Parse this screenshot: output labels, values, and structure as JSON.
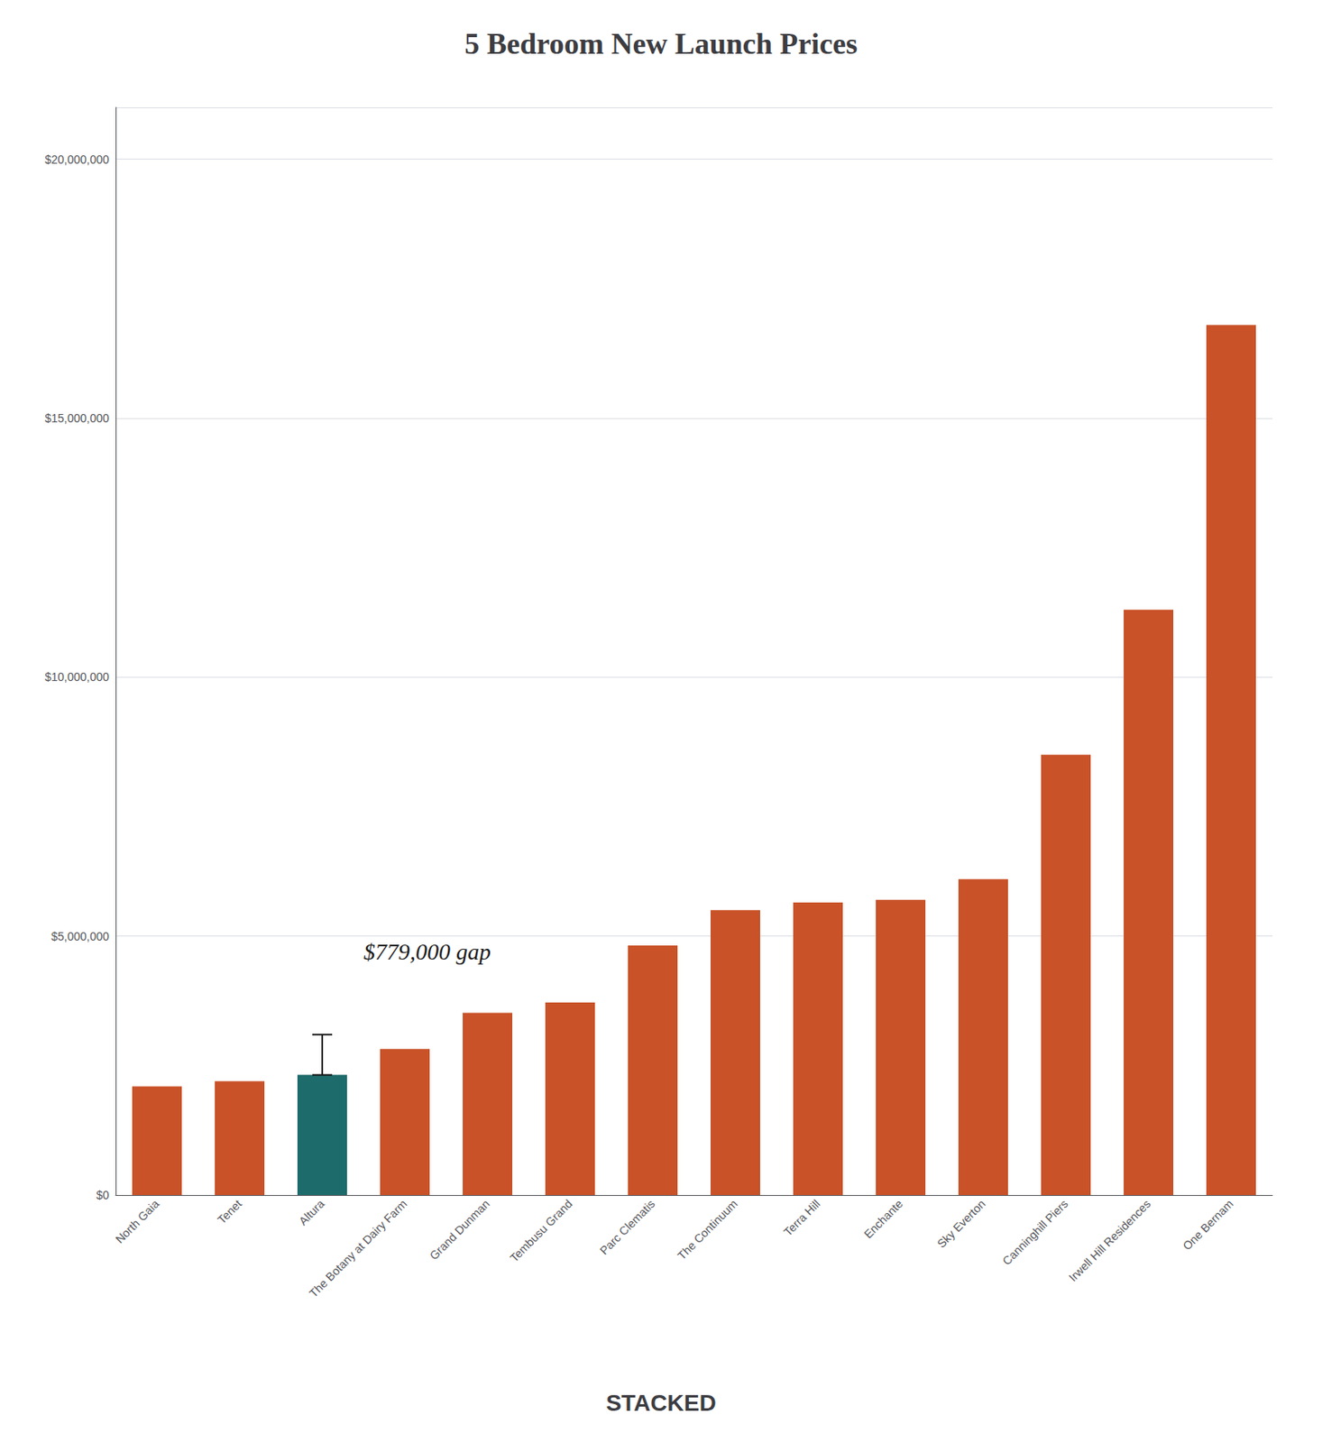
{
  "chart_data": {
    "type": "bar",
    "title": "5 Bedroom New Launch Prices",
    "categories": [
      "North Gaia",
      "Tenet",
      "Altura",
      "The Botany at Dairy Farm",
      "Grand Dunman",
      "Tembusu Grand",
      "Parc Clematis",
      "The Continuum",
      "Terra Hill",
      "Enchante",
      "Sky Everton",
      "Canninghill Piers",
      "Irwell Hill Residences",
      "One Bernam"
    ],
    "values": [
      2100000,
      2200000,
      2320000,
      2820000,
      3520000,
      3720000,
      4820000,
      5500000,
      5650000,
      5700000,
      6100000,
      8500000,
      11300000,
      16800000
    ],
    "colors": [
      "#c95228",
      "#c95228",
      "#1e6b6b",
      "#c95228",
      "#c95228",
      "#c95228",
      "#c95228",
      "#c95228",
      "#c95228",
      "#c95228",
      "#c95228",
      "#c95228",
      "#c95228",
      "#c95228"
    ],
    "error_bars": [
      null,
      null,
      779000,
      null,
      null,
      null,
      null,
      null,
      null,
      null,
      null,
      null,
      null,
      null
    ],
    "annotations": [
      {
        "text": "$779,000 gap",
        "x": 2.5,
        "y": 4700000
      }
    ],
    "footer": "STACKED",
    "ylim": [
      0,
      21000000
    ],
    "yticks": [
      {
        "value": 0,
        "label": "$0"
      },
      {
        "value": 5000000,
        "label": "$5,000,000"
      },
      {
        "value": 10000000,
        "label": "$10,000,000"
      },
      {
        "value": 15000000,
        "label": "$15,000,000"
      },
      {
        "value": 20000000,
        "label": "$20,000,000"
      }
    ],
    "grid": true
  }
}
